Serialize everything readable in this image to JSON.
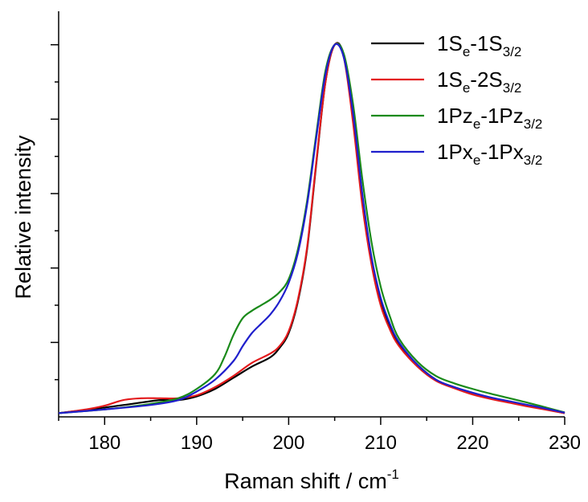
{
  "chart_data": {
    "type": "line",
    "title": "",
    "xlabel": {
      "main": "Raman shift / cm",
      "sup": "-1"
    },
    "ylabel": "Relative intensity",
    "xlim": [
      175,
      230
    ],
    "ylim": [
      0,
      1.09
    ],
    "x_ticks": [
      180,
      190,
      200,
      210,
      220,
      230
    ],
    "x_tick_labels": [
      "180",
      "190",
      "200",
      "210",
      "220",
      "230"
    ],
    "y_tick_labels_shown": false,
    "grid": false,
    "legend_position": "top-right",
    "series": [
      {
        "name": "1Se-1S3/2",
        "label_parts": [
          [
            "1S",
            ""
          ],
          [
            "e",
            "sub"
          ],
          [
            "-1S",
            ""
          ],
          [
            "3/2",
            "sub"
          ]
        ],
        "color": "#000000",
        "points": [
          [
            175,
            0.01
          ],
          [
            180,
            0.025
          ],
          [
            183,
            0.035
          ],
          [
            186,
            0.045
          ],
          [
            188,
            0.045
          ],
          [
            190,
            0.055
          ],
          [
            192,
            0.075
          ],
          [
            194,
            0.105
          ],
          [
            196,
            0.135
          ],
          [
            198,
            0.16
          ],
          [
            199,
            0.185
          ],
          [
            200,
            0.225
          ],
          [
            201,
            0.31
          ],
          [
            202,
            0.45
          ],
          [
            203,
            0.68
          ],
          [
            204,
            0.9
          ],
          [
            205,
            1.0
          ],
          [
            206,
            0.97
          ],
          [
            207,
            0.8
          ],
          [
            208,
            0.58
          ],
          [
            209,
            0.42
          ],
          [
            210,
            0.31
          ],
          [
            211,
            0.24
          ],
          [
            212,
            0.195
          ],
          [
            214,
            0.14
          ],
          [
            216,
            0.1
          ],
          [
            218,
            0.078
          ],
          [
            220,
            0.062
          ],
          [
            222,
            0.05
          ],
          [
            224,
            0.04
          ],
          [
            226,
            0.03
          ],
          [
            228,
            0.02
          ],
          [
            230,
            0.01
          ]
        ]
      },
      {
        "name": "1Se-2S3/2",
        "label_parts": [
          [
            "1S",
            ""
          ],
          [
            "e",
            "sub"
          ],
          [
            "-2S",
            ""
          ],
          [
            "3/2",
            "sub"
          ]
        ],
        "color": "#e31a1c",
        "points": [
          [
            175,
            0.01
          ],
          [
            178,
            0.02
          ],
          [
            180,
            0.03
          ],
          [
            182,
            0.045
          ],
          [
            184,
            0.05
          ],
          [
            186,
            0.05
          ],
          [
            188,
            0.05
          ],
          [
            190,
            0.058
          ],
          [
            192,
            0.08
          ],
          [
            194,
            0.11
          ],
          [
            196,
            0.145
          ],
          [
            198,
            0.17
          ],
          [
            199,
            0.19
          ],
          [
            200,
            0.23
          ],
          [
            201,
            0.315
          ],
          [
            202,
            0.455
          ],
          [
            203,
            0.685
          ],
          [
            204,
            0.9
          ],
          [
            205,
            1.0
          ],
          [
            206,
            0.965
          ],
          [
            207,
            0.79
          ],
          [
            208,
            0.57
          ],
          [
            209,
            0.41
          ],
          [
            210,
            0.3
          ],
          [
            211,
            0.235
          ],
          [
            212,
            0.19
          ],
          [
            214,
            0.135
          ],
          [
            216,
            0.097
          ],
          [
            218,
            0.077
          ],
          [
            220,
            0.06
          ],
          [
            222,
            0.048
          ],
          [
            224,
            0.038
          ],
          [
            226,
            0.028
          ],
          [
            228,
            0.019
          ],
          [
            230,
            0.01
          ]
        ]
      },
      {
        "name": "1Pze-1Pz3/2",
        "label_parts": [
          [
            "1Pz",
            ""
          ],
          [
            "e",
            "sub"
          ],
          [
            "-1Pz",
            ""
          ],
          [
            "3/2",
            "sub"
          ]
        ],
        "color": "#1a8a1a",
        "points": [
          [
            175,
            0.01
          ],
          [
            180,
            0.02
          ],
          [
            185,
            0.035
          ],
          [
            188,
            0.05
          ],
          [
            190,
            0.075
          ],
          [
            192,
            0.115
          ],
          [
            193,
            0.16
          ],
          [
            194,
            0.22
          ],
          [
            195,
            0.265
          ],
          [
            196,
            0.285
          ],
          [
            197,
            0.3
          ],
          [
            198,
            0.315
          ],
          [
            199,
            0.335
          ],
          [
            200,
            0.37
          ],
          [
            201,
            0.45
          ],
          [
            202,
            0.58
          ],
          [
            203,
            0.76
          ],
          [
            204,
            0.93
          ],
          [
            205,
            1.0
          ],
          [
            206,
            0.975
          ],
          [
            207,
            0.84
          ],
          [
            208,
            0.64
          ],
          [
            209,
            0.47
          ],
          [
            210,
            0.35
          ],
          [
            211,
            0.27
          ],
          [
            212,
            0.21
          ],
          [
            214,
            0.148
          ],
          [
            216,
            0.11
          ],
          [
            218,
            0.09
          ],
          [
            220,
            0.075
          ],
          [
            222,
            0.062
          ],
          [
            224,
            0.05
          ],
          [
            226,
            0.038
          ],
          [
            228,
            0.025
          ],
          [
            230,
            0.012
          ]
        ]
      },
      {
        "name": "1Pxe-1Px3/2",
        "label_parts": [
          [
            "1Px",
            ""
          ],
          [
            "e",
            "sub"
          ],
          [
            "-1Px",
            ""
          ],
          [
            "3/2",
            "sub"
          ]
        ],
        "color": "#1f1fcc",
        "points": [
          [
            175,
            0.01
          ],
          [
            180,
            0.02
          ],
          [
            185,
            0.032
          ],
          [
            188,
            0.045
          ],
          [
            190,
            0.068
          ],
          [
            192,
            0.1
          ],
          [
            194,
            0.15
          ],
          [
            195,
            0.19
          ],
          [
            196,
            0.225
          ],
          [
            197,
            0.25
          ],
          [
            198,
            0.275
          ],
          [
            199,
            0.31
          ],
          [
            200,
            0.36
          ],
          [
            201,
            0.44
          ],
          [
            202,
            0.57
          ],
          [
            203,
            0.75
          ],
          [
            204,
            0.92
          ],
          [
            205,
            1.0
          ],
          [
            206,
            0.965
          ],
          [
            207,
            0.815
          ],
          [
            208,
            0.6
          ],
          [
            209,
            0.43
          ],
          [
            210,
            0.32
          ],
          [
            211,
            0.25
          ],
          [
            212,
            0.2
          ],
          [
            214,
            0.14
          ],
          [
            216,
            0.1
          ],
          [
            218,
            0.08
          ],
          [
            220,
            0.065
          ],
          [
            222,
            0.052
          ],
          [
            224,
            0.042
          ],
          [
            226,
            0.032
          ],
          [
            228,
            0.022
          ],
          [
            230,
            0.011
          ]
        ]
      }
    ]
  }
}
